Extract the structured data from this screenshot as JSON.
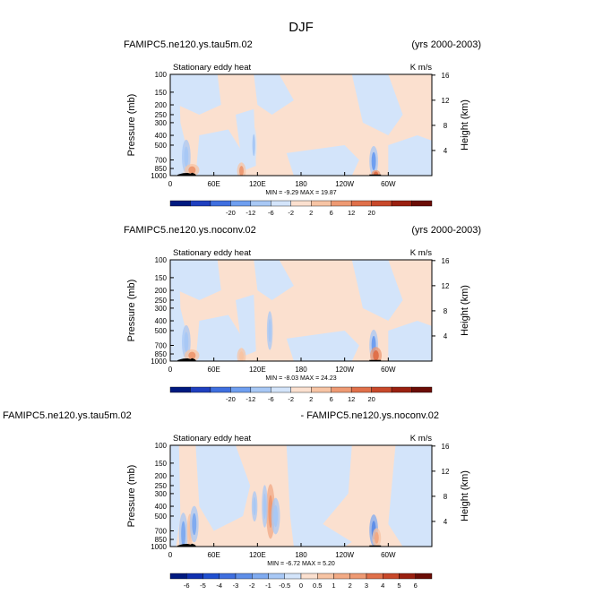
{
  "figure": {
    "title": "DJF"
  },
  "chart_data": [
    {
      "type": "heatmap",
      "case_label": "FAMIPC5.ne120.ys.tau5m.02",
      "years_label": "(yrs 2000-2003)",
      "title": "Stationary eddy heat",
      "units": "K m/s",
      "ylabel": "Pressure (mb)",
      "ylabel_right": "Height (km)",
      "x_ticks": [
        "0",
        "60E",
        "120E",
        "180",
        "120W",
        "60W"
      ],
      "y_ticks": [
        "100",
        "150",
        "200",
        "250",
        "300",
        "400",
        "500",
        "700",
        "850",
        "1000"
      ],
      "height_ticks": [
        "4",
        "8",
        "12",
        "16"
      ],
      "min_max": "MIN =   -9.29   MAX =   19.87",
      "colorbar_labels": [
        "-20",
        "-12",
        "-6",
        "-2",
        "2",
        "6",
        "12",
        "20"
      ],
      "colorbar_colors": [
        "#001a80",
        "#1f3fbf",
        "#3f6fdf",
        "#6f9ff0",
        "#a8c8f5",
        "#d3e4fa",
        "#fbe0cf",
        "#f7c4a4",
        "#ee9a73",
        "#e0704a",
        "#c8482a",
        "#9a2010",
        "#6b0d06"
      ],
      "blobs": [
        {
          "lon": 98,
          "p": 900,
          "w": 3,
          "h": 140,
          "v": 1.6
        },
        {
          "lon": 280,
          "p": 720,
          "w": 3,
          "h": 250,
          "v": -1.8
        },
        {
          "lon": 283,
          "p": 960,
          "w": 3,
          "h": 60,
          "v": 2.8
        },
        {
          "lon": 22,
          "p": 650,
          "w": 3,
          "h": 280,
          "v": -1.2
        },
        {
          "lon": 30,
          "p": 880,
          "w": 5,
          "h": 100,
          "v": 1.8
        },
        {
          "lon": 115,
          "p": 500,
          "w": 2,
          "h": 300,
          "v": -0.8
        }
      ]
    },
    {
      "type": "heatmap",
      "case_label": "FAMIPC5.ne120.ys.noconv.02",
      "years_label": "(yrs 2000-2003)",
      "title": "Stationary eddy heat",
      "units": "K m/s",
      "ylabel": "Pressure (mb)",
      "ylabel_right": "Height (km)",
      "x_ticks": [
        "0",
        "60E",
        "120E",
        "180",
        "120W",
        "60W"
      ],
      "y_ticks": [
        "100",
        "150",
        "200",
        "250",
        "300",
        "400",
        "500",
        "700",
        "850",
        "1000"
      ],
      "height_ticks": [
        "4",
        "8",
        "12",
        "16"
      ],
      "min_max": "MIN =   -8.03   MAX =   24.23",
      "colorbar_labels": [
        "-20",
        "-12",
        "-6",
        "-2",
        "2",
        "6",
        "12",
        "20"
      ],
      "colorbar_colors": [
        "#001a80",
        "#1f3fbf",
        "#3f6fdf",
        "#6f9ff0",
        "#a8c8f5",
        "#d3e4fa",
        "#fbe0cf",
        "#f7c4a4",
        "#ee9a73",
        "#e0704a",
        "#c8482a",
        "#9a2010",
        "#6b0d06"
      ],
      "blobs": [
        {
          "lon": 98,
          "p": 900,
          "w": 3,
          "h": 140,
          "v": 1.4
        },
        {
          "lon": 137,
          "p": 500,
          "w": 2,
          "h": 320,
          "v": -1.4
        },
        {
          "lon": 280,
          "p": 700,
          "w": 3,
          "h": 260,
          "v": -1.7
        },
        {
          "lon": 283,
          "p": 880,
          "w": 4,
          "h": 140,
          "v": 3.0
        },
        {
          "lon": 22,
          "p": 650,
          "w": 3,
          "h": 280,
          "v": -1.2
        },
        {
          "lon": 30,
          "p": 880,
          "w": 5,
          "h": 100,
          "v": 1.6
        }
      ]
    },
    {
      "type": "heatmap",
      "case_label": "FAMIPC5.ne120.ys.tau5m.02",
      "years_label": "- FAMIPC5.ne120.ys.noconv.02",
      "title": "Stationary eddy heat",
      "units": "K m/s",
      "ylabel": "Pressure (mb)",
      "ylabel_right": "Height (km)",
      "x_ticks": [
        "0",
        "60E",
        "120E",
        "180",
        "120W",
        "60W"
      ],
      "y_ticks": [
        "100",
        "150",
        "200",
        "250",
        "300",
        "400",
        "500",
        "700",
        "850",
        "1000"
      ],
      "height_ticks": [
        "4",
        "8",
        "12",
        "16"
      ],
      "min_max": "MIN =   -6.72   MAX =    5.20",
      "colorbar_labels": [
        "-6",
        "-5",
        "-4",
        "-3",
        "-2",
        "-1",
        "-0.5",
        "0",
        "0.5",
        "1",
        "2",
        "3",
        "4",
        "5",
        "6"
      ],
      "colorbar_colors": [
        "#001a80",
        "#1030b0",
        "#2050d0",
        "#3f6fdf",
        "#5f8fe8",
        "#80abf0",
        "#a8c8f5",
        "#d3e4fa",
        "#fbe0cf",
        "#f7c4a4",
        "#f2aa85",
        "#ee9a73",
        "#e0704a",
        "#c8482a",
        "#9a2010",
        "#6b0d06"
      ],
      "blobs": [
        {
          "lon": 138,
          "p": 450,
          "w": 3,
          "h": 450,
          "v": 2.7
        },
        {
          "lon": 280,
          "p": 690,
          "w": 3,
          "h": 260,
          "v": -2.6
        },
        {
          "lon": 284,
          "p": 820,
          "w": 3,
          "h": 160,
          "v": 1.6
        },
        {
          "lon": 18,
          "p": 750,
          "w": 3,
          "h": 350,
          "v": -2.2
        },
        {
          "lon": 27,
          "p": 700,
          "w": 2,
          "h": 280,
          "v": 1.4
        },
        {
          "lon": 33,
          "p": 600,
          "w": 3,
          "h": 300,
          "v": -1.8
        },
        {
          "lon": 130,
          "p": 400,
          "w": 2,
          "h": 350,
          "v": -0.9
        },
        {
          "lon": 145,
          "p": 500,
          "w": 3,
          "h": 300,
          "v": -0.9
        },
        {
          "lon": 116,
          "p": 400,
          "w": 2,
          "h": 250,
          "v": -1.0
        }
      ]
    }
  ]
}
